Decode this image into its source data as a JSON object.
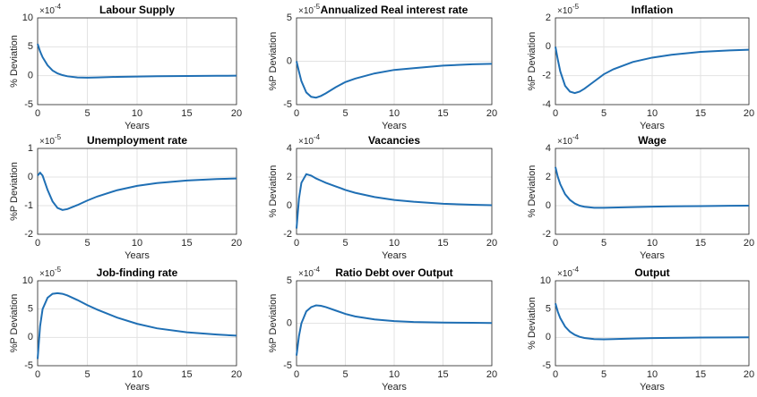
{
  "chart_data": [
    {
      "type": "line",
      "title": "Labour Supply",
      "xlabel": "Years",
      "ylabel": "% Deviation",
      "y_scale": {
        "base": "×10",
        "exponent": "-4"
      },
      "x": [
        0,
        0.25,
        0.5,
        1,
        1.5,
        2,
        2.5,
        3,
        4,
        5,
        6,
        8,
        10,
        12,
        15,
        18,
        20
      ],
      "values": [
        5.5,
        4.2,
        3.2,
        1.8,
        0.9,
        0.4,
        0.1,
        -0.1,
        -0.3,
        -0.35,
        -0.3,
        -0.2,
        -0.15,
        -0.1,
        -0.05,
        -0.02,
        0
      ],
      "color": "#1f6fb4",
      "xlim": [
        0,
        20
      ],
      "xticks": [
        0,
        5,
        10,
        15,
        20
      ],
      "ylim": [
        -5,
        10
      ],
      "yticks": [
        -5,
        0,
        5,
        10
      ],
      "grid": true
    },
    {
      "type": "line",
      "title": "Annualized Real interest rate",
      "xlabel": "Years",
      "ylabel": "%P Deviation",
      "y_scale": {
        "base": "×10",
        "exponent": "-5"
      },
      "x": [
        0,
        0.25,
        0.5,
        1,
        1.5,
        2,
        2.5,
        3,
        4,
        5,
        6,
        8,
        10,
        12,
        15,
        18,
        20
      ],
      "values": [
        0,
        -1.2,
        -2.3,
        -3.6,
        -4.1,
        -4.2,
        -4.0,
        -3.7,
        -3.0,
        -2.4,
        -2.0,
        -1.4,
        -1.0,
        -0.8,
        -0.5,
        -0.35,
        -0.3
      ],
      "color": "#1f6fb4",
      "xlim": [
        0,
        20
      ],
      "xticks": [
        0,
        5,
        10,
        15,
        20
      ],
      "ylim": [
        -5,
        5
      ],
      "yticks": [
        -5,
        0,
        5
      ],
      "grid": true
    },
    {
      "type": "line",
      "title": "Inflation",
      "xlabel": "Years",
      "ylabel": "%P Deviation",
      "y_scale": {
        "base": "×10",
        "exponent": "-5"
      },
      "x": [
        0,
        0.25,
        0.5,
        1,
        1.5,
        2,
        2.5,
        3,
        4,
        5,
        6,
        8,
        10,
        12,
        15,
        18,
        20
      ],
      "values": [
        0,
        -0.9,
        -1.7,
        -2.7,
        -3.1,
        -3.2,
        -3.1,
        -2.9,
        -2.4,
        -1.9,
        -1.55,
        -1.05,
        -0.75,
        -0.55,
        -0.35,
        -0.25,
        -0.2
      ],
      "color": "#1f6fb4",
      "xlim": [
        0,
        20
      ],
      "xticks": [
        0,
        5,
        10,
        15,
        20
      ],
      "ylim": [
        -4,
        2
      ],
      "yticks": [
        -4,
        -2,
        0,
        2
      ],
      "grid": true
    },
    {
      "type": "line",
      "title": "Unemployment rate",
      "xlabel": "Years",
      "ylabel": "%P Deviation",
      "y_scale": {
        "base": "×10",
        "exponent": "-5"
      },
      "x": [
        0,
        0.25,
        0.5,
        1,
        1.5,
        2,
        2.5,
        3,
        4,
        5,
        6,
        8,
        10,
        12,
        15,
        18,
        20
      ],
      "values": [
        0.05,
        0.15,
        0.05,
        -0.45,
        -0.85,
        -1.08,
        -1.15,
        -1.12,
        -0.98,
        -0.82,
        -0.68,
        -0.46,
        -0.31,
        -0.21,
        -0.12,
        -0.07,
        -0.05
      ],
      "color": "#1f6fb4",
      "xlim": [
        0,
        20
      ],
      "xticks": [
        0,
        5,
        10,
        15,
        20
      ],
      "ylim": [
        -2,
        1
      ],
      "yticks": [
        -2,
        -1,
        0,
        1
      ],
      "grid": true
    },
    {
      "type": "line",
      "title": "Vacancies",
      "xlabel": "Years",
      "ylabel": "% Deviation",
      "y_scale": {
        "base": "×10",
        "exponent": "-4"
      },
      "x": [
        0,
        0.25,
        0.5,
        1,
        1.5,
        2,
        2.5,
        3,
        4,
        5,
        6,
        8,
        10,
        12,
        15,
        18,
        20
      ],
      "values": [
        -1.6,
        0.5,
        1.6,
        2.2,
        2.1,
        1.9,
        1.75,
        1.6,
        1.35,
        1.1,
        0.9,
        0.6,
        0.4,
        0.27,
        0.13,
        0.06,
        0.03
      ],
      "color": "#1f6fb4",
      "xlim": [
        0,
        20
      ],
      "xticks": [
        0,
        5,
        10,
        15,
        20
      ],
      "ylim": [
        -2,
        4
      ],
      "yticks": [
        -2,
        0,
        2,
        4
      ],
      "grid": true
    },
    {
      "type": "line",
      "title": "Wage",
      "xlabel": "Years",
      "ylabel": "% Deviation",
      "y_scale": {
        "base": "×10",
        "exponent": "-4"
      },
      "x": [
        0,
        0.25,
        0.5,
        1,
        1.5,
        2,
        2.5,
        3,
        4,
        5,
        6,
        8,
        10,
        12,
        15,
        18,
        20
      ],
      "values": [
        2.7,
        2.0,
        1.5,
        0.8,
        0.4,
        0.15,
        0,
        -0.08,
        -0.15,
        -0.15,
        -0.13,
        -0.1,
        -0.07,
        -0.05,
        -0.03,
        -0.01,
        0
      ],
      "color": "#1f6fb4",
      "xlim": [
        0,
        20
      ],
      "xticks": [
        0,
        5,
        10,
        15,
        20
      ],
      "ylim": [
        -2,
        4
      ],
      "yticks": [
        -2,
        0,
        2,
        4
      ],
      "grid": true
    },
    {
      "type": "line",
      "title": "Job-finding rate",
      "xlabel": "Years",
      "ylabel": "%P Deviation",
      "y_scale": {
        "base": "×10",
        "exponent": "-5"
      },
      "x": [
        0,
        0.25,
        0.5,
        1,
        1.5,
        2,
        2.5,
        3,
        4,
        5,
        6,
        8,
        10,
        12,
        15,
        18,
        20
      ],
      "values": [
        -3.8,
        2,
        5,
        7,
        7.7,
        7.8,
        7.7,
        7.4,
        6.6,
        5.7,
        4.9,
        3.5,
        2.4,
        1.6,
        0.9,
        0.5,
        0.3
      ],
      "color": "#1f6fb4",
      "xlim": [
        0,
        20
      ],
      "xticks": [
        0,
        5,
        10,
        15,
        20
      ],
      "ylim": [
        -5,
        10
      ],
      "yticks": [
        -5,
        0,
        5,
        10
      ],
      "grid": true
    },
    {
      "type": "line",
      "title": "Ratio Debt over Output",
      "xlabel": "Years",
      "ylabel": "%P Deviation",
      "y_scale": {
        "base": "×10",
        "exponent": "-4"
      },
      "x": [
        0,
        0.25,
        0.5,
        1,
        1.5,
        2,
        2.5,
        3,
        4,
        5,
        6,
        8,
        10,
        12,
        15,
        18,
        20
      ],
      "values": [
        -3.8,
        -1.5,
        0,
        1.4,
        1.9,
        2.1,
        2.05,
        1.9,
        1.5,
        1.1,
        0.8,
        0.45,
        0.25,
        0.15,
        0.08,
        0.05,
        0.03
      ],
      "color": "#1f6fb4",
      "xlim": [
        0,
        20
      ],
      "xticks": [
        0,
        5,
        10,
        15,
        20
      ],
      "ylim": [
        -5,
        5
      ],
      "yticks": [
        -5,
        0,
        5
      ],
      "grid": true
    },
    {
      "type": "line",
      "title": "Output",
      "xlabel": "Years",
      "ylabel": "% Deviation",
      "y_scale": {
        "base": "×10",
        "exponent": "-4"
      },
      "x": [
        0,
        0.25,
        0.5,
        1,
        1.5,
        2,
        2.5,
        3,
        4,
        5,
        6,
        8,
        10,
        12,
        15,
        18,
        20
      ],
      "values": [
        6,
        4.5,
        3.4,
        1.9,
        1.0,
        0.45,
        0.1,
        -0.1,
        -0.3,
        -0.35,
        -0.3,
        -0.2,
        -0.12,
        -0.08,
        -0.03,
        0,
        0.02
      ],
      "color": "#1f6fb4",
      "xlim": [
        0,
        20
      ],
      "xticks": [
        0,
        5,
        10,
        15,
        20
      ],
      "ylim": [
        -5,
        10
      ],
      "yticks": [
        -5,
        0,
        5,
        10
      ],
      "grid": true
    }
  ]
}
